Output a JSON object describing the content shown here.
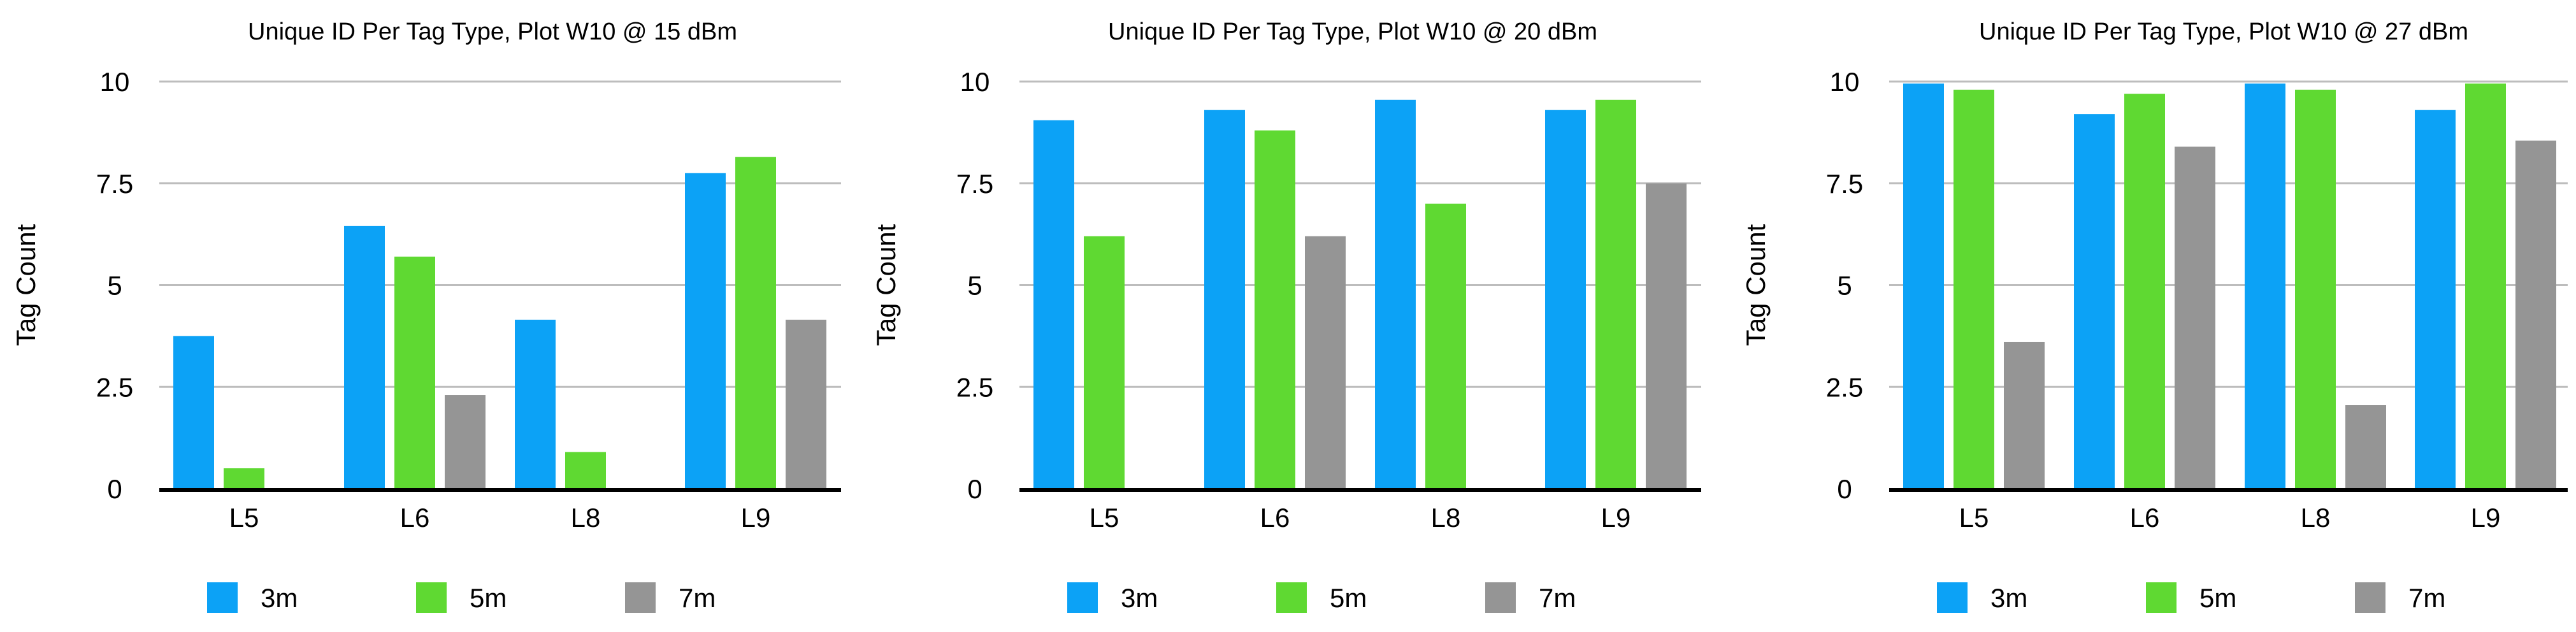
{
  "chart_data": [
    {
      "type": "bar",
      "title": "Unique ID Per Tag Type, Plot W10 @ 15 dBm",
      "ylabel": "Tag Count",
      "xlabel": "",
      "categories": [
        "L5",
        "L6",
        "L8",
        "L9"
      ],
      "ylim": [
        0,
        10
      ],
      "yticks": [
        "0",
        "2.5",
        "5",
        "7.5",
        "10"
      ],
      "grid": true,
      "legend_position": "bottom",
      "series": [
        {
          "name": "3m",
          "color": "#0ca2f6",
          "values": [
            3.75,
            6.45,
            4.15,
            7.75
          ]
        },
        {
          "name": "5m",
          "color": "#5fd932",
          "values": [
            0.5,
            5.7,
            0.9,
            8.15
          ]
        },
        {
          "name": "7m",
          "color": "#959595",
          "values": [
            0,
            2.3,
            0,
            4.15
          ]
        }
      ]
    },
    {
      "type": "bar",
      "title": "Unique ID Per Tag Type, Plot W10 @ 20 dBm",
      "ylabel": "Tag Count",
      "xlabel": "",
      "categories": [
        "L5",
        "L6",
        "L8",
        "L9"
      ],
      "ylim": [
        0,
        10
      ],
      "yticks": [
        "0",
        "2.5",
        "5",
        "7.5",
        "10"
      ],
      "grid": true,
      "legend_position": "bottom",
      "series": [
        {
          "name": "3m",
          "color": "#0ca2f6",
          "values": [
            9.05,
            9.3,
            9.55,
            9.3
          ]
        },
        {
          "name": "5m",
          "color": "#5fd932",
          "values": [
            6.2,
            8.8,
            7.0,
            9.55
          ]
        },
        {
          "name": "7m",
          "color": "#959595",
          "values": [
            0,
            6.2,
            0,
            7.5
          ]
        }
      ]
    },
    {
      "type": "bar",
      "title": "Unique ID Per Tag Type, Plot W10 @ 27 dBm",
      "ylabel": "Tag Count",
      "xlabel": "",
      "categories": [
        "L5",
        "L6",
        "L8",
        "L9"
      ],
      "ylim": [
        0,
        10
      ],
      "yticks": [
        "0",
        "2.5",
        "5",
        "7.5",
        "10"
      ],
      "grid": true,
      "legend_position": "bottom",
      "series": [
        {
          "name": "3m",
          "color": "#0ca2f6",
          "values": [
            9.95,
            9.2,
            9.95,
            9.3
          ]
        },
        {
          "name": "5m",
          "color": "#5fd932",
          "values": [
            9.8,
            9.7,
            9.8,
            9.95
          ]
        },
        {
          "name": "7m",
          "color": "#959595",
          "values": [
            3.6,
            8.4,
            2.05,
            8.55
          ]
        }
      ]
    }
  ]
}
